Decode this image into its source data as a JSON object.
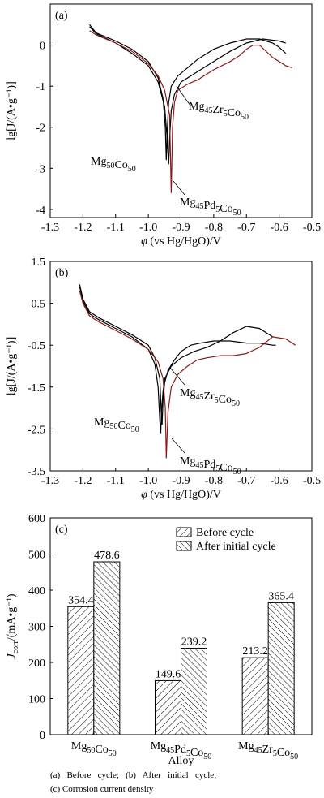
{
  "charts": [
    {
      "tag": "(a)",
      "xlabel_sym": "φ",
      "xlabel_rest": " (vs Hg/HgO)/V",
      "ylabel": "lg[J/(A•g⁻¹)]",
      "xticks": [
        "-1.3",
        "-1.2",
        "-1.1",
        "-1.0",
        "-0.9",
        "-0.8",
        "-0.7",
        "-0.6",
        "-0.5"
      ],
      "yticks": [
        "0",
        "-1",
        "-2",
        "-3",
        "-4"
      ],
      "labels": {
        "mgco": {
          "base": "Mg",
          "s1": "50",
          "mid": "Co",
          "s2": "50",
          "rest": "",
          "s3": ""
        },
        "mgzr": {
          "base": "Mg",
          "s1": "45",
          "mid": "Zr",
          "s2": "5",
          "rest": "Co",
          "s3": "50"
        },
        "mgpd": {
          "base": "Mg",
          "s1": "45",
          "mid": "Pd",
          "s2": "5",
          "rest": "Co",
          "s3": "50"
        }
      }
    },
    {
      "tag": "(b)",
      "xlabel_sym": "φ",
      "xlabel_rest": " (vs Hg/HgO)/V",
      "ylabel": "lg[J/(A•g⁻¹)]",
      "xticks": [
        "-1.3",
        "-1.2",
        "-1.1",
        "-1.0",
        "-0.9",
        "-0.8",
        "-0.7",
        "-0.6",
        "-0.5"
      ],
      "yticks": [
        "1.5",
        "0.5",
        "-0.5",
        "-1.5",
        "-2.5",
        "-3.5"
      ],
      "labels": {
        "mgzr": {
          "base": "Mg",
          "s1": "45",
          "mid": "Zr",
          "s2": "5",
          "rest": "Co",
          "s3": "50"
        },
        "mgco": {
          "base": "Mg",
          "s1": "50",
          "mid": "Co",
          "s2": "50",
          "rest": "",
          "s3": ""
        },
        "mgpd": {
          "base": "Mg",
          "s1": "45",
          "mid": "Pd",
          "s2": "5",
          "rest": "Co",
          "s3": "50"
        }
      }
    }
  ],
  "chart_data": [
    {
      "type": "line",
      "title": "(a)",
      "xlabel": "φ (vs Hg/HgO)/V",
      "ylabel": "lg[J/(A•g⁻¹)]",
      "xlim": [
        -1.3,
        -0.5
      ],
      "ylim": [
        -4.2,
        1.0
      ],
      "series": [
        {
          "name": "Mg50Co50",
          "color": "#000000",
          "x": [
            -1.18,
            -1.16,
            -1.1,
            -1.05,
            -1.0,
            -0.97,
            -0.955,
            -0.948,
            -0.945,
            -0.942,
            -0.938,
            -0.93,
            -0.91,
            -0.88,
            -0.85,
            -0.8,
            -0.75,
            -0.7,
            -0.66,
            -0.62,
            -0.6,
            -0.58
          ],
          "y": [
            0.5,
            0.3,
            0.1,
            -0.1,
            -0.4,
            -0.8,
            -1.3,
            -2.0,
            -2.8,
            -2.1,
            -1.4,
            -1.0,
            -0.75,
            -0.55,
            -0.35,
            -0.1,
            0.05,
            0.15,
            0.15,
            0.05,
            -0.05,
            -0.2
          ]
        },
        {
          "name": "Mg45Zr5Co50",
          "color": "#000000",
          "x": [
            -1.18,
            -1.16,
            -1.1,
            -1.05,
            -1.0,
            -0.97,
            -0.95,
            -0.942,
            -0.938,
            -0.935,
            -0.93,
            -0.92,
            -0.9,
            -0.87,
            -0.84,
            -0.8,
            -0.75,
            -0.7,
            -0.65,
            -0.6,
            -0.58
          ],
          "y": [
            0.45,
            0.28,
            0.05,
            -0.2,
            -0.5,
            -0.9,
            -1.5,
            -2.3,
            -2.9,
            -2.3,
            -1.6,
            -1.2,
            -0.9,
            -0.75,
            -0.6,
            -0.4,
            -0.15,
            0.05,
            0.15,
            0.1,
            0.05
          ]
        },
        {
          "name": "Mg45Pd5Co50",
          "color": "#8b1a1a",
          "x": [
            -1.18,
            -1.16,
            -1.1,
            -1.05,
            -1.0,
            -0.97,
            -0.95,
            -0.935,
            -0.93,
            -0.926,
            -0.92,
            -0.91,
            -0.88,
            -0.85,
            -0.8,
            -0.75,
            -0.72,
            -0.7,
            -0.68,
            -0.66,
            -0.62,
            -0.58,
            -0.56
          ],
          "y": [
            0.35,
            0.25,
            0.05,
            -0.15,
            -0.45,
            -0.75,
            -1.1,
            -1.7,
            -3.6,
            -2.0,
            -1.4,
            -1.1,
            -0.95,
            -0.85,
            -0.6,
            -0.4,
            -0.25,
            -0.1,
            0.0,
            0.0,
            -0.3,
            -0.5,
            -0.55
          ]
        }
      ]
    },
    {
      "type": "line",
      "title": "(b)",
      "xlabel": "φ (vs Hg/HgO)/V",
      "ylabel": "lg[J/(A•g⁻¹)]",
      "xlim": [
        -1.3,
        -0.5
      ],
      "ylim": [
        -3.5,
        1.5
      ],
      "series": [
        {
          "name": "Mg45Zr5Co50",
          "color": "#000000",
          "x": [
            -1.21,
            -1.2,
            -1.18,
            -1.15,
            -1.1,
            -1.05,
            -1.0,
            -0.98,
            -0.965,
            -0.96,
            -0.958,
            -0.955,
            -0.95,
            -0.94,
            -0.92,
            -0.9,
            -0.87,
            -0.84,
            -0.8,
            -0.75,
            -0.7,
            -0.66,
            -0.62,
            -0.61
          ],
          "y": [
            0.95,
            0.6,
            0.3,
            0.15,
            -0.05,
            -0.25,
            -0.5,
            -0.8,
            -1.3,
            -2.2,
            -2.4,
            -1.8,
            -1.4,
            -1.1,
            -0.85,
            -0.65,
            -0.5,
            -0.45,
            -0.4,
            -0.4,
            -0.45,
            -0.45,
            -0.5,
            -0.5
          ]
        },
        {
          "name": "Mg50Co50",
          "color": "#000000",
          "x": [
            -1.21,
            -1.2,
            -1.18,
            -1.15,
            -1.1,
            -1.05,
            -1.0,
            -0.98,
            -0.97,
            -0.965,
            -0.962,
            -0.96,
            -0.955,
            -0.95,
            -0.93,
            -0.9,
            -0.86,
            -0.82,
            -0.78,
            -0.74,
            -0.7,
            -0.66,
            -0.62
          ],
          "y": [
            0.9,
            0.55,
            0.25,
            0.1,
            -0.1,
            -0.3,
            -0.6,
            -0.95,
            -1.5,
            -2.3,
            -2.6,
            -2.1,
            -1.6,
            -1.3,
            -1.0,
            -0.8,
            -0.65,
            -0.55,
            -0.4,
            -0.2,
            -0.05,
            -0.1,
            -0.3
          ]
        },
        {
          "name": "Mg45Pd5Co50",
          "color": "#8b1a1a",
          "x": [
            -1.21,
            -1.2,
            -1.18,
            -1.15,
            -1.1,
            -1.05,
            -1.0,
            -0.97,
            -0.955,
            -0.948,
            -0.945,
            -0.94,
            -0.93,
            -0.91,
            -0.88,
            -0.85,
            -0.82,
            -0.78,
            -0.74,
            -0.7,
            -0.66,
            -0.62,
            -0.58,
            -0.55
          ],
          "y": [
            0.8,
            0.5,
            0.2,
            0.05,
            -0.15,
            -0.35,
            -0.6,
            -0.9,
            -1.3,
            -2.0,
            -3.2,
            -2.1,
            -1.5,
            -1.2,
            -1.0,
            -0.85,
            -0.8,
            -0.75,
            -0.75,
            -0.7,
            -0.55,
            -0.3,
            -0.35,
            -0.5
          ]
        }
      ]
    },
    {
      "type": "bar",
      "title": "(c)",
      "xlabel": "Alloy",
      "ylabel": "Jcorr/(mA•g⁻¹)",
      "ylim": [
        0,
        600
      ],
      "yticks": [
        "0",
        "100",
        "200",
        "300",
        "400",
        "500",
        "600"
      ],
      "categories": [
        "Mg50Co50",
        "Mg45Pd5Co50",
        "Mg45Zr5Co50"
      ],
      "series": [
        {
          "name": "Before cycle",
          "values": [
            354.4,
            149.6,
            213.2
          ],
          "labels": [
            "354.4",
            "149.6",
            "213.2"
          ]
        },
        {
          "name": "After initial cycle",
          "values": [
            478.6,
            239.2,
            365.4
          ],
          "labels": [
            "478.6",
            "239.2",
            "365.4"
          ]
        }
      ],
      "legend": "top-right"
    }
  ],
  "bar_axis": {
    "ylabel_main": "J",
    "ylabel_sub": "corr",
    "ylabel_rest": "/(mA•g⁻¹)",
    "xlabel": "Alloy",
    "tag": "(c)",
    "cat_labels": [
      {
        "base": "Mg",
        "s1": "50",
        "mid": "Co",
        "s2": "50",
        "rest": "",
        "s3": ""
      },
      {
        "base": "Mg",
        "s1": "45",
        "mid": "Pd",
        "s2": "5",
        "rest": "Co",
        "s3": "50"
      },
      {
        "base": "Mg",
        "s1": "45",
        "mid": "Zr",
        "s2": "5",
        "rest": "Co",
        "s3": "50"
      }
    ]
  },
  "caption": {
    "line1": "(a)   Before   cycle;   (b)   After   initial   cycle;",
    "line2": "(c) Corrosion current density"
  }
}
